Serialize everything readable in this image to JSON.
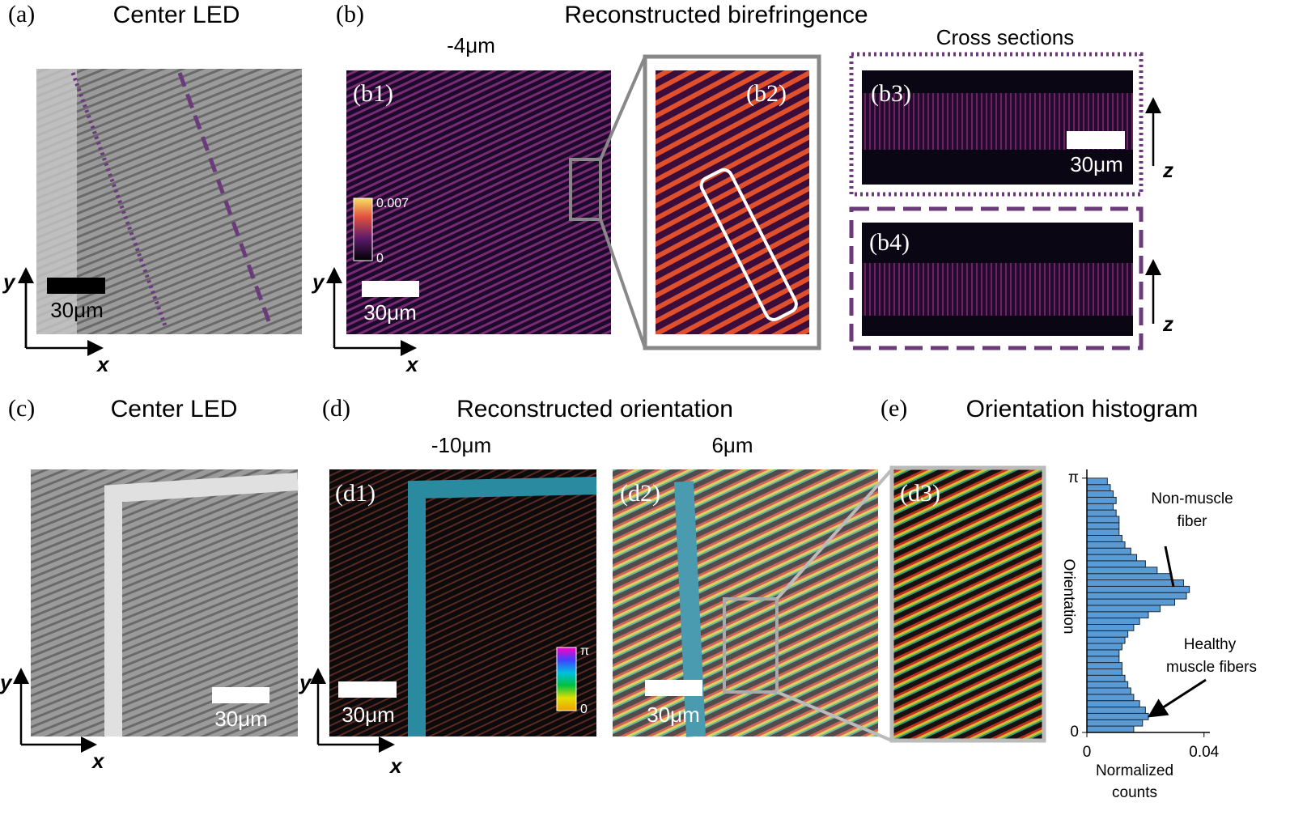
{
  "panels": {
    "a": {
      "label": "(a)",
      "title": "Center LED",
      "scale_bar": "30μm",
      "y_axis": "y",
      "x_axis": "x"
    },
    "b": {
      "label": "(b)",
      "title": "Reconstructed birefringence",
      "depth": "-4μm",
      "b1": {
        "label": "(b1)",
        "colorbar_max": "0.007",
        "colorbar_min": "0",
        "scale_bar": "30μm",
        "y_axis": "y",
        "x_axis": "x"
      },
      "b2": {
        "label": "(b2)"
      },
      "cross_sections_title": "Cross sections",
      "b3": {
        "label": "(b3)",
        "scale_bar": "30μm",
        "z_axis": "z"
      },
      "b4": {
        "label": "(b4)",
        "z_axis": "z"
      }
    },
    "c": {
      "label": "(c)",
      "title": "Center LED",
      "scale_bar": "30μm",
      "y_axis": "y",
      "x_axis": "x"
    },
    "d": {
      "label": "(d)",
      "title": "Reconstructed orientation",
      "d1": {
        "label": "(d1)",
        "depth": "-10μm",
        "colorbar_max": "π",
        "colorbar_min": "0",
        "scale_bar": "30μm",
        "y_axis": "y",
        "x_axis": "x"
      },
      "d2": {
        "label": "(d2)",
        "depth": "6μm",
        "scale_bar": "30μm"
      },
      "d3": {
        "label": "(d3)"
      }
    },
    "e": {
      "label": "(e)",
      "title": "Orientation histogram"
    }
  },
  "chart_data": {
    "type": "histogram",
    "orientation": "horizontal",
    "color": "#5b9bd5",
    "bins": [
      0,
      0.079,
      0.157,
      0.236,
      0.314,
      0.393,
      0.471,
      0.55,
      0.628,
      0.707,
      0.785,
      0.864,
      0.942,
      1.021,
      1.1,
      1.178,
      1.257,
      1.335,
      1.414,
      1.492,
      1.571,
      1.649,
      1.728,
      1.806,
      1.885,
      1.963,
      2.042,
      2.121,
      2.199,
      2.278,
      2.356,
      2.435,
      2.513,
      2.592,
      2.67,
      2.749,
      2.827,
      2.906,
      2.985,
      3.063,
      3.142
    ],
    "values": [
      0.016,
      0.019,
      0.021,
      0.02,
      0.018,
      0.016,
      0.015,
      0.014,
      0.013,
      0.012,
      0.012,
      0.011,
      0.011,
      0.012,
      0.013,
      0.014,
      0.016,
      0.018,
      0.021,
      0.025,
      0.03,
      0.034,
      0.035,
      0.033,
      0.029,
      0.024,
      0.02,
      0.017,
      0.015,
      0.013,
      0.012,
      0.011,
      0.011,
      0.011,
      0.01,
      0.009,
      0.01,
      0.009,
      0.008,
      0.007
    ],
    "ylabel": "Orientation",
    "xlabel": [
      "Normalized",
      "counts"
    ],
    "xlim": [
      0,
      0.042
    ],
    "ylim": [
      0,
      3.25
    ],
    "xticks": [
      0,
      0.04
    ],
    "yticks": [
      0,
      {
        "value": 3.142,
        "label": "π"
      }
    ],
    "annotations": [
      {
        "text": [
          "Non-muscle",
          "fiber"
        ]
      },
      {
        "text": [
          "Healthy",
          "muscle fibers"
        ]
      }
    ]
  }
}
